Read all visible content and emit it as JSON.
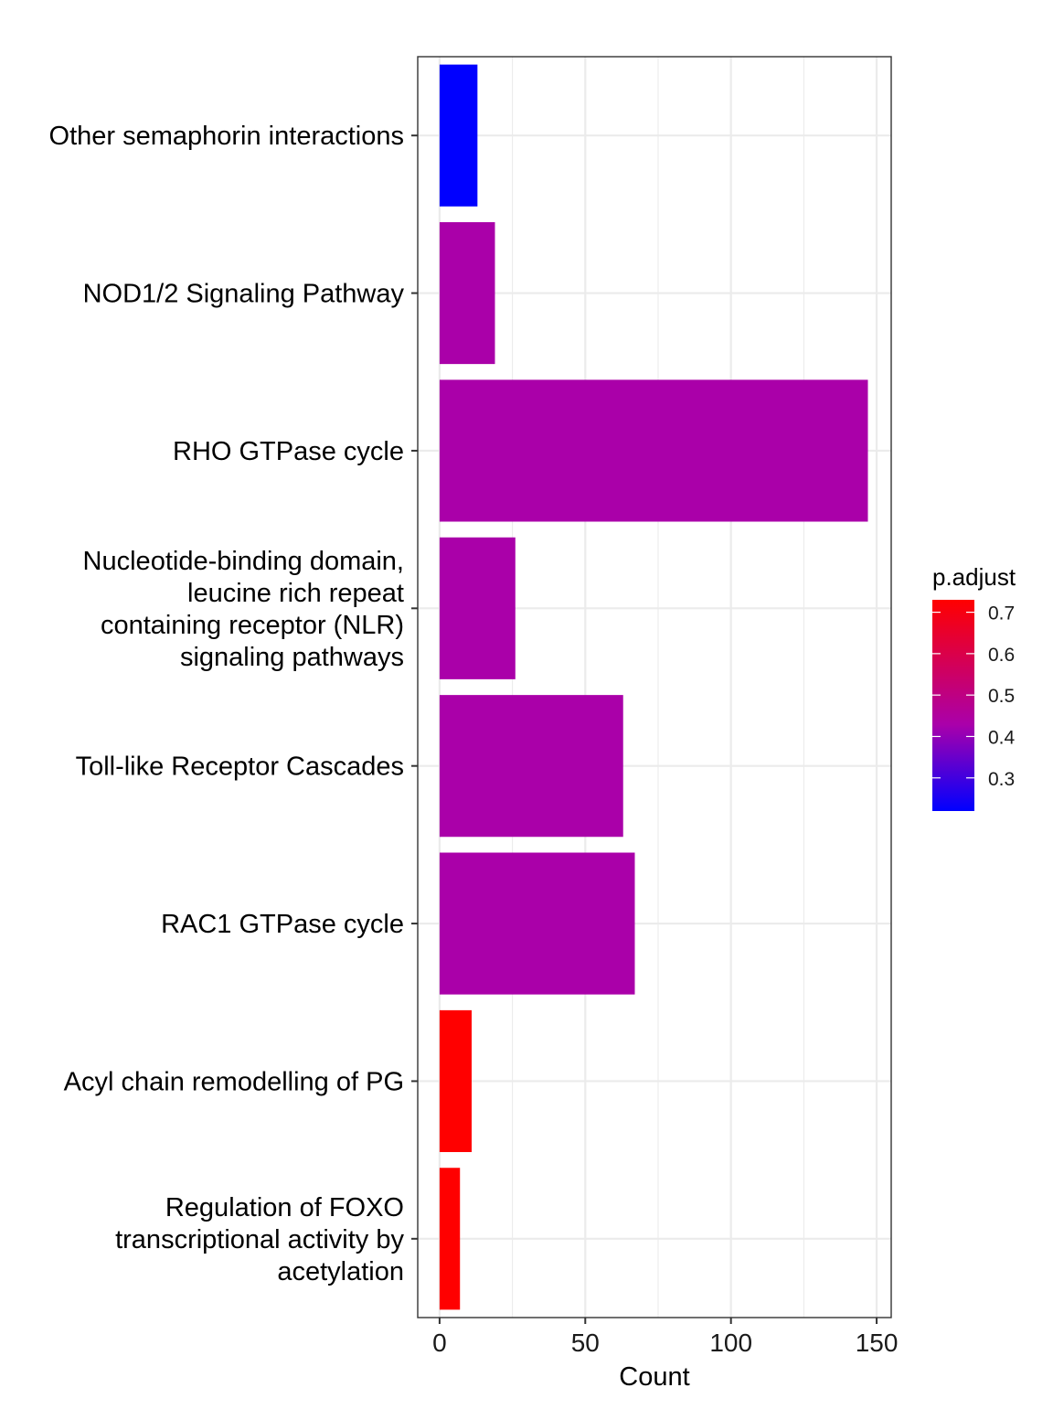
{
  "chart_data": {
    "type": "bar",
    "orientation": "horizontal",
    "xlabel": "Count",
    "ylabel": "",
    "xlim": [
      -7.5,
      155
    ],
    "x_ticks": [
      0,
      50,
      100,
      150
    ],
    "grid": true,
    "legend_placement": "right",
    "categories": [
      {
        "lines": [
          "Other semaphorin interactions"
        ],
        "value": 13,
        "p_adjust": 0.22
      },
      {
        "lines": [
          "NOD1/2 Signaling Pathway"
        ],
        "value": 19,
        "p_adjust": 0.43
      },
      {
        "lines": [
          "RHO GTPase cycle"
        ],
        "value": 147,
        "p_adjust": 0.43
      },
      {
        "lines": [
          "Nucleotide-binding domain,",
          "leucine rich repeat",
          "containing receptor (NLR)",
          "signaling pathways"
        ],
        "value": 26,
        "p_adjust": 0.43
      },
      {
        "lines": [
          "Toll-like Receptor Cascades"
        ],
        "value": 63,
        "p_adjust": 0.43
      },
      {
        "lines": [
          "RAC1 GTPase cycle"
        ],
        "value": 67,
        "p_adjust": 0.43
      },
      {
        "lines": [
          "Acyl chain remodelling of PG"
        ],
        "value": 11,
        "p_adjust": 0.73
      },
      {
        "lines": [
          "Regulation of FOXO",
          "transcriptional activity by",
          "acetylation"
        ],
        "value": 7,
        "p_adjust": 0.73
      }
    ],
    "legend": {
      "title": "p.adjust",
      "min": 0.22,
      "max": 0.73,
      "ticks": [
        0.3,
        0.4,
        0.5,
        0.6,
        0.7
      ],
      "tick_labels": [
        "0.3",
        "0.4",
        "0.5",
        "0.6",
        "0.7"
      ],
      "low_color": "#0000ff",
      "high_color": "#ff0000"
    },
    "colors": {
      "grid": "#ebebeb",
      "panel_border": "#333333"
    }
  }
}
